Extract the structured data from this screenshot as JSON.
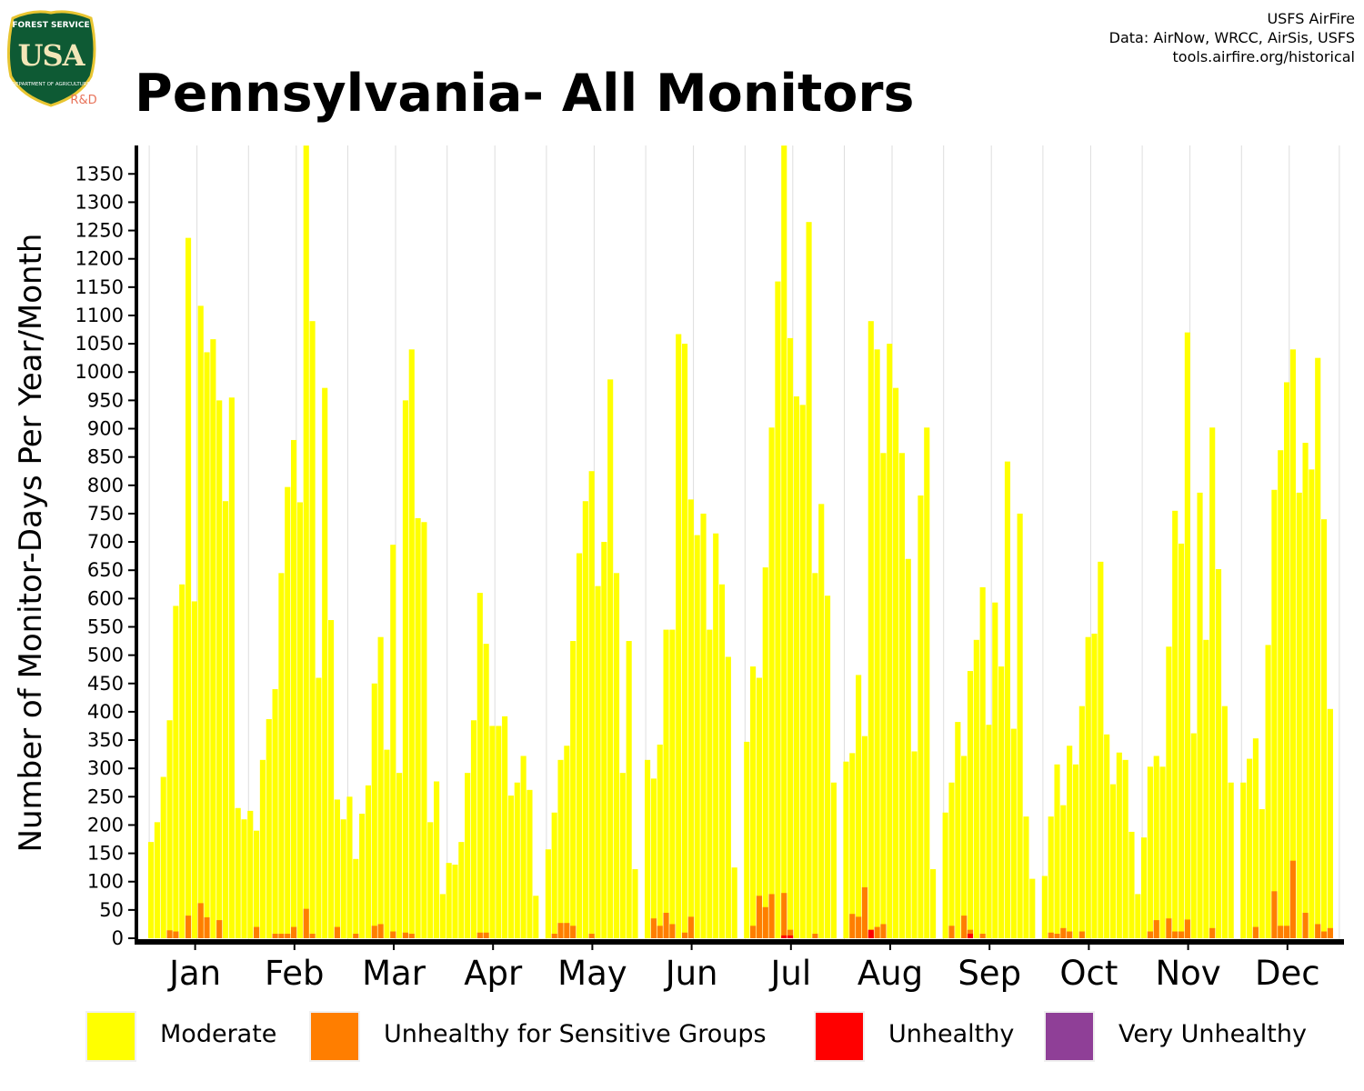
{
  "header": {
    "title": "Pennsylvania- All Monitors",
    "credits": [
      "USFS AirFire",
      "Data: AirNow, WRCC, AirSis, USFS",
      "tools.airfire.org/historical"
    ]
  },
  "logo": {
    "top_text": "FOREST SERVICE",
    "letters": "USA",
    "bottom_text": "DEPARTMENT OF AGRICULTURE",
    "tag": "R&D",
    "colors": {
      "shield": "#0e5a34",
      "border": "#e8c531",
      "tag": "#e8735a"
    }
  },
  "legend": [
    {
      "label": "Moderate",
      "color": "#ffff00"
    },
    {
      "label": "Unhealthy for Sensitive Groups",
      "color": "#ff7e00"
    },
    {
      "label": "Unhealthy",
      "color": "#ff0000"
    },
    {
      "label": "Very Unhealthy",
      "color": "#8f3f97"
    }
  ],
  "chart_data": {
    "type": "bar",
    "stacked": true,
    "ylabel": "Number of Monitor-Days Per Year/Month",
    "ylim": [
      0,
      1400
    ],
    "yticks": [
      0,
      50,
      100,
      150,
      200,
      250,
      300,
      350,
      400,
      450,
      500,
      550,
      600,
      650,
      700,
      750,
      800,
      850,
      900,
      950,
      1000,
      1050,
      1100,
      1150,
      1200,
      1250,
      1300,
      1350
    ],
    "categories": [
      "Jan",
      "Feb",
      "Mar",
      "Apr",
      "May",
      "Jun",
      "Jul",
      "Aug",
      "Sep",
      "Oct",
      "Nov",
      "Dec"
    ],
    "bars_per_month": 16,
    "grid": "vertical",
    "legend_position": "bottom",
    "series": [
      {
        "name": "Moderate",
        "color": "#ffff00",
        "values": [
          [
            170,
            205,
            285,
            385,
            587,
            625,
            1237,
            595,
            1117,
            1035,
            1058,
            950,
            772,
            955,
            230,
            210
          ],
          [
            225,
            190,
            315,
            387,
            440,
            645,
            797,
            880,
            770,
            1400,
            1090,
            460,
            972,
            562,
            245,
            210
          ],
          [
            250,
            140,
            220,
            270,
            450,
            532,
            333,
            695,
            292,
            950,
            1040,
            742,
            735,
            205,
            277,
            78
          ],
          [
            133,
            130,
            170,
            292,
            385,
            610,
            520,
            375,
            375,
            392,
            252,
            275,
            322,
            262,
            75,
            0
          ],
          [
            157,
            222,
            315,
            340,
            525,
            680,
            772,
            825,
            622,
            700,
            987,
            645,
            292,
            525,
            122,
            0
          ],
          [
            315,
            282,
            342,
            545,
            545,
            1067,
            1050,
            775,
            712,
            750,
            545,
            715,
            625,
            497,
            125,
            0
          ],
          [
            347,
            480,
            460,
            655,
            902,
            1160,
            1400,
            1060,
            957,
            942,
            1265,
            645,
            767,
            605,
            275,
            0
          ],
          [
            312,
            327,
            465,
            357,
            1090,
            1040,
            857,
            1050,
            972,
            857,
            670,
            330,
            782,
            902,
            122,
            0
          ],
          [
            222,
            275,
            382,
            322,
            472,
            527,
            620,
            377,
            593,
            480,
            842,
            370,
            750,
            215,
            105,
            0
          ],
          [
            110,
            215,
            307,
            235,
            340,
            307,
            410,
            532,
            538,
            665,
            360,
            272,
            328,
            315,
            188,
            78
          ],
          [
            178,
            303,
            322,
            303,
            515,
            755,
            697,
            1070,
            362,
            787,
            527,
            902,
            652,
            410,
            275,
            0
          ],
          [
            275,
            317,
            353,
            228,
            518,
            792,
            862,
            982,
            1040,
            787,
            875,
            828,
            1025,
            740,
            405,
            0
          ]
        ]
      },
      {
        "name": "Unhealthy for Sensitive Groups",
        "color": "#ff7e00",
        "values": [
          [
            0,
            0,
            0,
            14,
            12,
            0,
            40,
            0,
            62,
            37,
            0,
            32,
            0,
            0,
            0,
            0
          ],
          [
            0,
            20,
            0,
            0,
            8,
            8,
            8,
            20,
            0,
            52,
            8,
            0,
            0,
            0,
            20,
            0
          ],
          [
            0,
            8,
            0,
            0,
            22,
            25,
            0,
            12,
            0,
            10,
            8,
            0,
            0,
            0,
            0,
            0
          ],
          [
            0,
            0,
            0,
            0,
            0,
            10,
            10,
            0,
            0,
            0,
            0,
            0,
            0,
            0,
            0,
            0
          ],
          [
            0,
            8,
            27,
            27,
            22,
            0,
            0,
            8,
            0,
            0,
            0,
            0,
            0,
            0,
            0,
            0
          ],
          [
            0,
            35,
            22,
            45,
            25,
            0,
            10,
            38,
            0,
            0,
            0,
            0,
            0,
            0,
            0,
            0
          ],
          [
            0,
            22,
            75,
            55,
            78,
            0,
            80,
            15,
            0,
            0,
            0,
            8,
            0,
            0,
            0,
            0
          ],
          [
            0,
            43,
            38,
            90,
            12,
            20,
            25,
            0,
            0,
            0,
            0,
            0,
            0,
            0,
            0,
            0
          ],
          [
            0,
            22,
            0,
            40,
            15,
            0,
            8,
            0,
            0,
            0,
            0,
            0,
            0,
            0,
            0,
            0
          ],
          [
            0,
            10,
            8,
            18,
            12,
            0,
            12,
            0,
            0,
            0,
            0,
            0,
            0,
            0,
            0,
            0
          ],
          [
            0,
            12,
            32,
            0,
            35,
            12,
            12,
            33,
            0,
            0,
            0,
            18,
            0,
            0,
            0,
            0
          ],
          [
            0,
            0,
            20,
            0,
            0,
            83,
            22,
            22,
            137,
            0,
            45,
            0,
            25,
            12,
            18,
            0
          ]
        ]
      },
      {
        "name": "Unhealthy",
        "color": "#ff0000",
        "values": [
          [
            0,
            0,
            0,
            0,
            0,
            0,
            0,
            0,
            0,
            0,
            0,
            0,
            0,
            0,
            0,
            0
          ],
          [
            0,
            0,
            0,
            0,
            0,
            0,
            0,
            0,
            0,
            0,
            0,
            0,
            0,
            0,
            0,
            0
          ],
          [
            0,
            0,
            0,
            0,
            0,
            0,
            0,
            0,
            0,
            0,
            0,
            0,
            0,
            0,
            0,
            0
          ],
          [
            0,
            0,
            0,
            0,
            0,
            0,
            0,
            0,
            0,
            0,
            0,
            0,
            0,
            0,
            0,
            0
          ],
          [
            0,
            0,
            0,
            0,
            0,
            0,
            0,
            0,
            0,
            0,
            0,
            0,
            0,
            0,
            0,
            0
          ],
          [
            0,
            0,
            0,
            0,
            0,
            0,
            0,
            0,
            0,
            0,
            0,
            0,
            0,
            0,
            0,
            0
          ],
          [
            0,
            0,
            0,
            0,
            0,
            0,
            5,
            5,
            0,
            0,
            0,
            0,
            0,
            0,
            0,
            0
          ],
          [
            0,
            0,
            0,
            0,
            15,
            0,
            0,
            0,
            0,
            0,
            0,
            0,
            0,
            0,
            0,
            0
          ],
          [
            0,
            0,
            0,
            0,
            8,
            0,
            0,
            0,
            0,
            0,
            0,
            0,
            0,
            0,
            0,
            0
          ],
          [
            0,
            0,
            0,
            0,
            0,
            0,
            0,
            0,
            0,
            0,
            0,
            0,
            0,
            0,
            0,
            0
          ],
          [
            0,
            0,
            0,
            0,
            0,
            0,
            0,
            0,
            0,
            0,
            0,
            0,
            0,
            0,
            0,
            0
          ],
          [
            0,
            0,
            0,
            0,
            0,
            0,
            0,
            0,
            0,
            0,
            0,
            0,
            0,
            0,
            0,
            0
          ]
        ]
      },
      {
        "name": "Very Unhealthy",
        "color": "#8f3f97",
        "values": [
          [
            0,
            0,
            0,
            0,
            0,
            0,
            0,
            0,
            0,
            0,
            0,
            0,
            0,
            0,
            0,
            0
          ],
          [
            0,
            0,
            0,
            0,
            0,
            0,
            0,
            0,
            0,
            0,
            0,
            0,
            0,
            0,
            0,
            0
          ],
          [
            0,
            0,
            0,
            0,
            0,
            0,
            0,
            0,
            0,
            0,
            0,
            0,
            0,
            0,
            0,
            0
          ],
          [
            0,
            0,
            0,
            0,
            0,
            0,
            0,
            0,
            0,
            0,
            0,
            0,
            0,
            0,
            0,
            0
          ],
          [
            0,
            0,
            0,
            0,
            0,
            0,
            0,
            0,
            0,
            0,
            0,
            0,
            0,
            0,
            0,
            0
          ],
          [
            0,
            0,
            0,
            0,
            0,
            0,
            0,
            0,
            0,
            0,
            0,
            0,
            0,
            0,
            0,
            0
          ],
          [
            0,
            0,
            0,
            0,
            0,
            0,
            0,
            0,
            0,
            0,
            0,
            0,
            0,
            0,
            0,
            0
          ],
          [
            0,
            0,
            0,
            0,
            0,
            0,
            0,
            0,
            0,
            0,
            0,
            0,
            0,
            0,
            0,
            0
          ],
          [
            0,
            0,
            0,
            0,
            0,
            0,
            0,
            0,
            0,
            0,
            0,
            0,
            0,
            0,
            0,
            0
          ],
          [
            0,
            0,
            0,
            0,
            0,
            0,
            0,
            0,
            0,
            0,
            0,
            0,
            0,
            0,
            0,
            0
          ],
          [
            0,
            0,
            0,
            0,
            0,
            0,
            0,
            0,
            0,
            0,
            0,
            0,
            0,
            0,
            0,
            0
          ],
          [
            0,
            0,
            0,
            0,
            0,
            0,
            0,
            0,
            0,
            0,
            0,
            0,
            0,
            0,
            0,
            0
          ]
        ]
      }
    ]
  }
}
